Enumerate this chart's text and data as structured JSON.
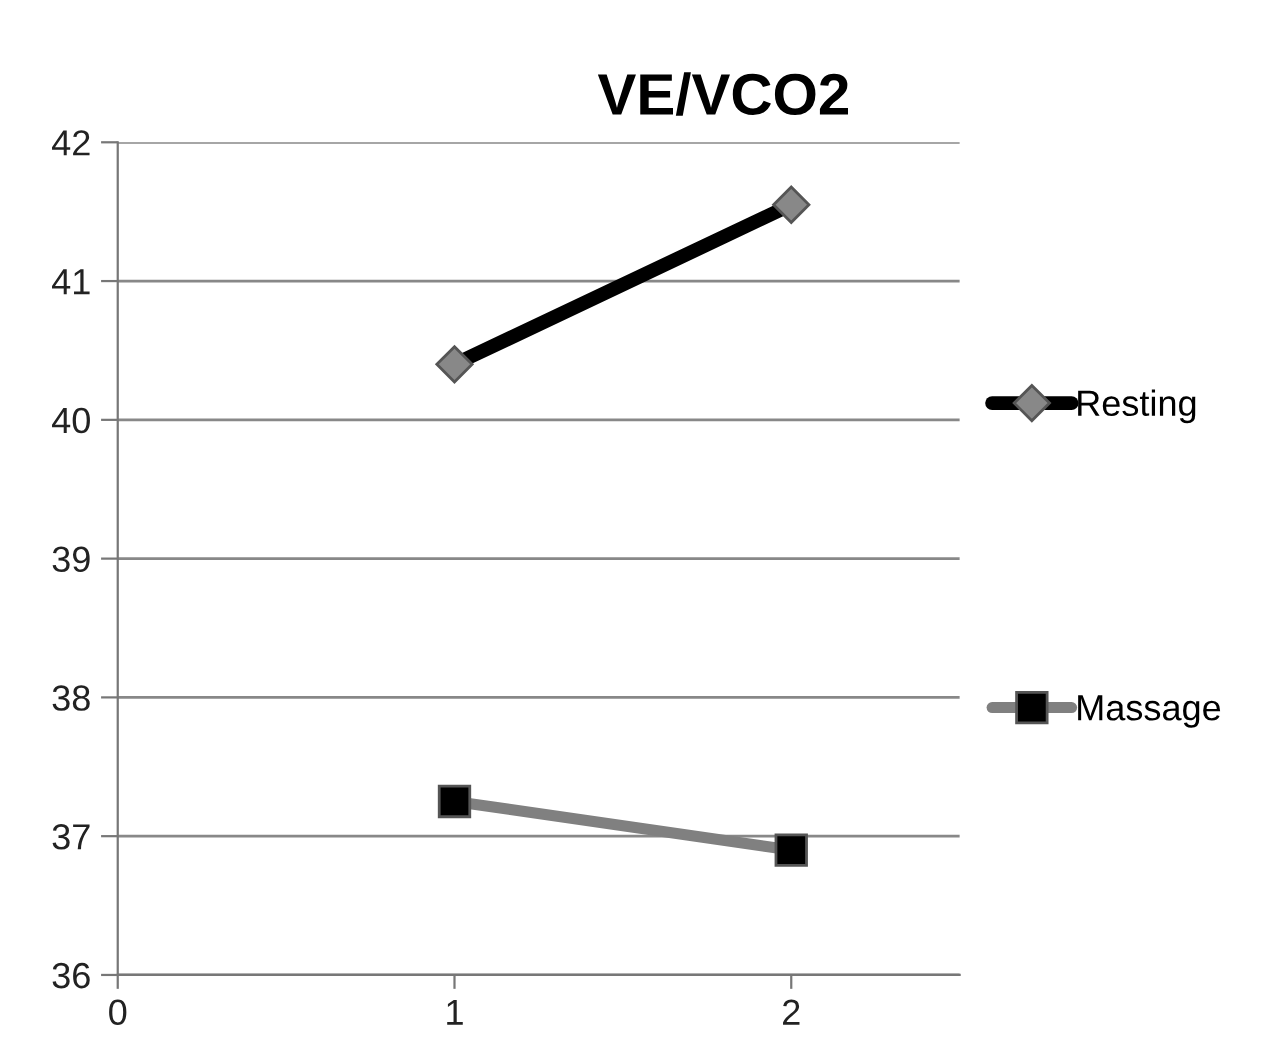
{
  "chart_data": {
    "type": "line",
    "title": "VE/VCO2",
    "x": [
      1,
      2
    ],
    "series": [
      {
        "name": "Resting",
        "color": "#000000",
        "marker": "diamond",
        "values": [
          40.4,
          41.55
        ]
      },
      {
        "name": "Massage",
        "color": "#808080",
        "marker": "square",
        "values": [
          37.25,
          36.9
        ]
      }
    ],
    "xlim": [
      0,
      2.5
    ],
    "xticks": [
      0,
      1,
      2
    ],
    "ylim": [
      36,
      42
    ],
    "yticks": [
      36,
      37,
      38,
      39,
      40,
      41,
      42
    ],
    "grid": "y",
    "legend": "right"
  }
}
